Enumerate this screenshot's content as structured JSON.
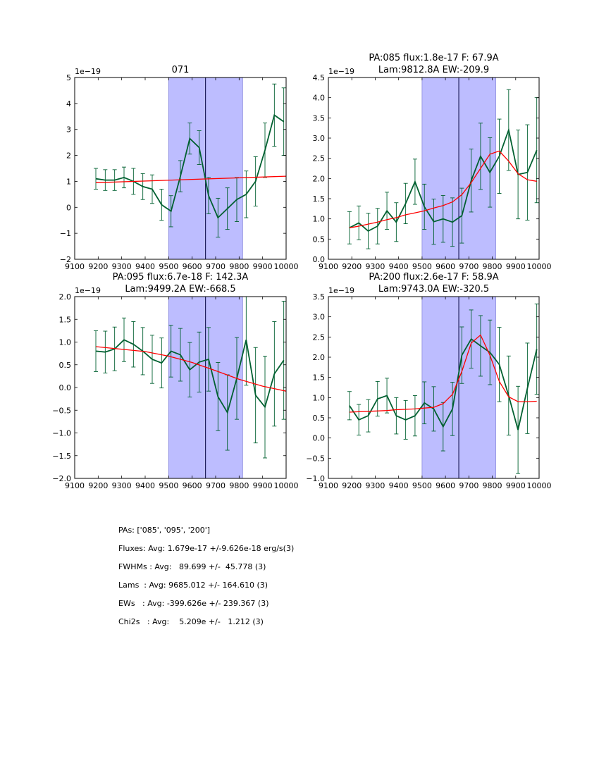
{
  "chart_data": [
    {
      "type": "line",
      "title": "071",
      "exponent_label": "1e−19",
      "xlim": [
        9100,
        10000
      ],
      "ylim": [
        -2,
        5
      ],
      "xticks": [
        9100,
        9200,
        9300,
        9400,
        9500,
        9600,
        9700,
        9800,
        9900,
        10000
      ],
      "yticks": [
        -2,
        -1,
        0,
        1,
        2,
        3,
        4,
        5
      ],
      "ytick_labels": [
        "−2",
        "−1",
        "0",
        "1",
        "2",
        "3",
        "4",
        "5"
      ],
      "shaded_region": [
        9500,
        9815
      ],
      "vline": 9657,
      "series": [
        {
          "name": "flux",
          "color": "#006030",
          "x": [
            9190,
            9230,
            9270,
            9310,
            9350,
            9390,
            9430,
            9470,
            9510,
            9550,
            9590,
            9630,
            9670,
            9710,
            9750,
            9790,
            9830,
            9870,
            9910,
            9950,
            9990
          ],
          "y": [
            1.1,
            1.05,
            1.05,
            1.15,
            1.0,
            0.8,
            0.7,
            0.1,
            -0.15,
            1.2,
            2.65,
            2.3,
            0.45,
            -0.4,
            -0.05,
            0.3,
            0.5,
            1.0,
            2.2,
            3.55,
            3.3
          ],
          "err": [
            0.4,
            0.4,
            0.4,
            0.4,
            0.5,
            0.5,
            0.55,
            0.6,
            0.6,
            0.6,
            0.6,
            0.65,
            0.7,
            0.75,
            0.8,
            0.85,
            0.9,
            0.95,
            1.05,
            1.2,
            1.3
          ]
        },
        {
          "name": "model",
          "color": "#ff0000",
          "x": [
            9190,
            10000
          ],
          "y": [
            0.95,
            1.2
          ]
        }
      ]
    },
    {
      "type": "line",
      "title": "PA:085 flux:1.8e-17 F: 67.9A",
      "subtitle": "Lam:9812.8A EW:-209.9",
      "exponent_label": "1e−19",
      "xlim": [
        9100,
        10000
      ],
      "ylim": [
        0,
        4.5
      ],
      "xticks": [
        9100,
        9200,
        9300,
        9400,
        9500,
        9600,
        9700,
        9800,
        9900,
        10000
      ],
      "yticks": [
        0,
        0.5,
        1,
        1.5,
        2,
        2.5,
        3,
        3.5,
        4,
        4.5
      ],
      "ytick_labels": [
        "0.0",
        "0.5",
        "1.0",
        "1.5",
        "2.0",
        "2.5",
        "3.0",
        "3.5",
        "4.0",
        "4.5"
      ],
      "shaded_region": [
        9500,
        9815
      ],
      "vline": 9657,
      "series": [
        {
          "name": "flux",
          "color": "#006030",
          "x": [
            9190,
            9230,
            9270,
            9310,
            9350,
            9390,
            9430,
            9470,
            9510,
            9550,
            9590,
            9630,
            9670,
            9710,
            9750,
            9790,
            9830,
            9870,
            9910,
            9950,
            9990
          ],
          "y": [
            0.78,
            0.9,
            0.7,
            0.82,
            1.2,
            0.92,
            1.38,
            1.92,
            1.3,
            0.93,
            1.0,
            0.92,
            1.08,
            1.95,
            2.55,
            2.15,
            2.55,
            3.2,
            2.1,
            2.15,
            2.7
          ],
          "err": [
            0.4,
            0.42,
            0.44,
            0.44,
            0.46,
            0.48,
            0.5,
            0.56,
            0.56,
            0.56,
            0.58,
            0.6,
            0.68,
            0.78,
            0.82,
            0.86,
            0.92,
            1.0,
            1.1,
            1.18,
            1.3
          ]
        },
        {
          "name": "model",
          "color": "#ff0000",
          "x": [
            9190,
            9230,
            9270,
            9310,
            9350,
            9390,
            9430,
            9470,
            9510,
            9550,
            9590,
            9630,
            9670,
            9710,
            9750,
            9790,
            9830,
            9870,
            9910,
            9950,
            9990
          ],
          "y": [
            0.78,
            0.82,
            0.87,
            0.92,
            0.98,
            1.03,
            1.1,
            1.15,
            1.2,
            1.27,
            1.33,
            1.42,
            1.6,
            1.9,
            2.25,
            2.6,
            2.68,
            2.43,
            2.12,
            1.97,
            1.93
          ]
        }
      ]
    },
    {
      "type": "line",
      "title": "PA:095 flux:6.7e-18 F: 142.3A",
      "subtitle": "Lam:9499.2A EW:-668.5",
      "exponent_label": "1e−19",
      "xlim": [
        9100,
        10000
      ],
      "ylim": [
        -2,
        2
      ],
      "xticks": [
        9100,
        9200,
        9300,
        9400,
        9500,
        9600,
        9700,
        9800,
        9900,
        10000
      ],
      "yticks": [
        -2,
        -1.5,
        -1,
        -0.5,
        0,
        0.5,
        1,
        1.5,
        2
      ],
      "ytick_labels": [
        "−2.0",
        "−1.5",
        "−1.0",
        "−0.5",
        "0.0",
        "0.5",
        "1.0",
        "1.5",
        "2.0"
      ],
      "shaded_region": [
        9500,
        9815
      ],
      "vline": 9657,
      "series": [
        {
          "name": "flux",
          "color": "#006030",
          "x": [
            9190,
            9230,
            9270,
            9310,
            9350,
            9390,
            9430,
            9470,
            9510,
            9550,
            9590,
            9630,
            9670,
            9710,
            9750,
            9790,
            9830,
            9870,
            9910,
            9950,
            9990
          ],
          "y": [
            0.8,
            0.78,
            0.85,
            1.05,
            0.95,
            0.8,
            0.62,
            0.54,
            0.8,
            0.72,
            0.39,
            0.56,
            0.62,
            -0.2,
            -0.55,
            0.2,
            1.05,
            -0.17,
            -0.43,
            0.3,
            0.6
          ],
          "err": [
            0.45,
            0.46,
            0.48,
            0.48,
            0.5,
            0.52,
            0.53,
            0.55,
            0.57,
            0.58,
            0.6,
            0.66,
            0.7,
            0.75,
            0.83,
            0.9,
            1.0,
            1.05,
            1.12,
            1.15,
            1.3
          ]
        },
        {
          "name": "model",
          "color": "#ff0000",
          "x": [
            9190,
            9400,
            9500,
            9600,
            9700,
            9800,
            9900,
            10000
          ],
          "y": [
            0.9,
            0.79,
            0.69,
            0.55,
            0.37,
            0.18,
            0.03,
            -0.08
          ]
        }
      ]
    },
    {
      "type": "line",
      "title": "PA:200 flux:2.6e-17 F: 58.9A",
      "subtitle": "Lam:9743.0A EW:-320.5",
      "exponent_label": "1e−19",
      "xlim": [
        9100,
        10000
      ],
      "ylim": [
        -1,
        3.5
      ],
      "xticks": [
        9100,
        9200,
        9300,
        9400,
        9500,
        9600,
        9700,
        9800,
        9900,
        10000
      ],
      "yticks": [
        -1,
        -0.5,
        0,
        0.5,
        1,
        1.5,
        2,
        2.5,
        3,
        3.5
      ],
      "ytick_labels": [
        "−1.0",
        "−0.5",
        "0.0",
        "0.5",
        "1.0",
        "1.5",
        "2.0",
        "2.5",
        "3.0",
        "3.5"
      ],
      "shaded_region": [
        9500,
        9815
      ],
      "vline": 9657,
      "series": [
        {
          "name": "flux",
          "color": "#006030",
          "x": [
            9190,
            9230,
            9270,
            9310,
            9350,
            9390,
            9430,
            9470,
            9510,
            9550,
            9590,
            9630,
            9670,
            9710,
            9750,
            9790,
            9830,
            9870,
            9910,
            9950,
            9990
          ],
          "y": [
            0.8,
            0.45,
            0.55,
            0.97,
            1.05,
            0.55,
            0.45,
            0.55,
            0.87,
            0.72,
            0.28,
            0.72,
            2.05,
            2.45,
            2.28,
            2.12,
            1.82,
            1.05,
            0.2,
            1.23,
            2.2
          ],
          "err": [
            0.35,
            0.38,
            0.4,
            0.43,
            0.43,
            0.45,
            0.48,
            0.5,
            0.52,
            0.55,
            0.6,
            0.66,
            0.7,
            0.72,
            0.75,
            0.8,
            0.92,
            0.98,
            1.08,
            1.12,
            1.12
          ]
        },
        {
          "name": "model",
          "color": "#ff0000",
          "x": [
            9190,
            9230,
            9270,
            9310,
            9350,
            9390,
            9430,
            9470,
            9510,
            9550,
            9590,
            9630,
            9670,
            9710,
            9750,
            9790,
            9830,
            9870,
            9910,
            9950,
            9990
          ],
          "y": [
            0.64,
            0.65,
            0.66,
            0.67,
            0.68,
            0.7,
            0.71,
            0.72,
            0.74,
            0.76,
            0.85,
            1.08,
            1.65,
            2.35,
            2.55,
            2.05,
            1.4,
            1.02,
            0.9,
            0.9,
            0.91
          ]
        }
      ]
    }
  ],
  "summary": {
    "pas": "PAs: ['085', '095', '200']",
    "fluxes": "Fluxes: Avg: 1.679e-17 +/-9.626e-18 erg/s(3)",
    "fwhms": "FWHMs : Avg:   89.699 +/-  45.778 (3)",
    "lams": "Lams  : Avg: 9685.012 +/- 164.610 (3)",
    "ews": "EWs   : Avg: -399.626e +/- 239.367 (3)",
    "chi2s": "Chi2s   : Avg:    5.209e +/-   1.212 (3)"
  }
}
